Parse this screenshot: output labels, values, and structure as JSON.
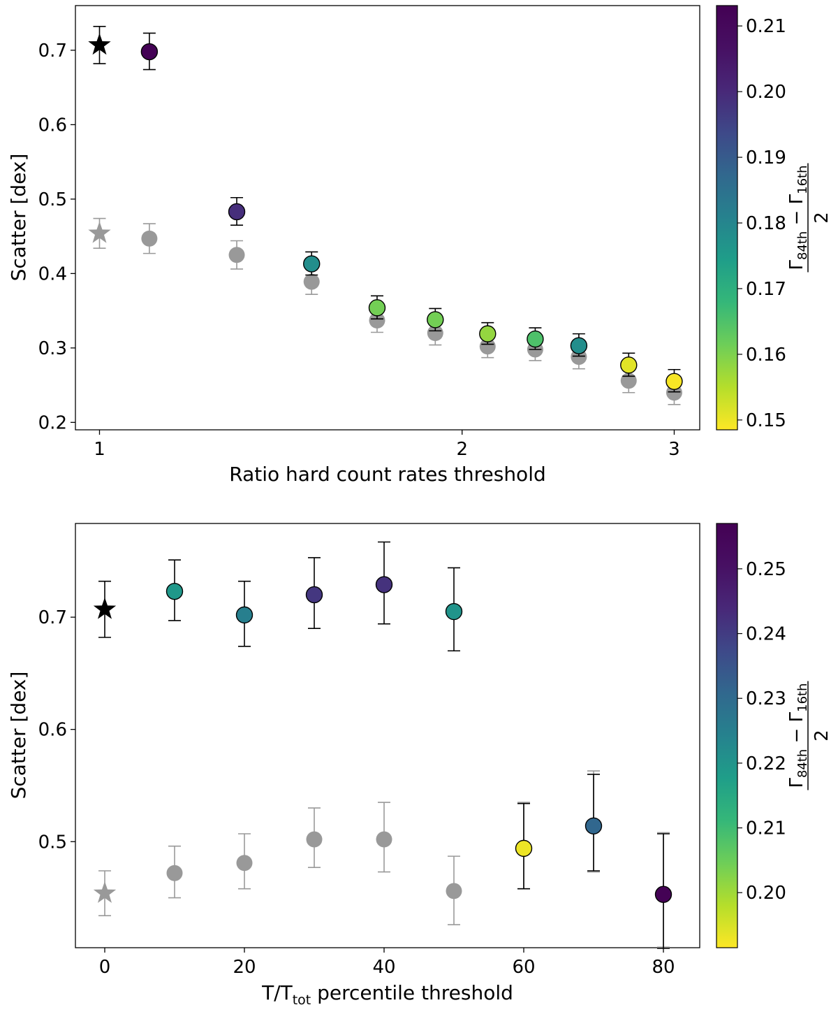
{
  "chart_data": [
    {
      "type": "scatter",
      "xscale": "log",
      "xlabel": "Ratio hard count rates threshold",
      "ylabel": "Scatter [dex]",
      "xlim": [
        0.955,
        3.15
      ],
      "ylim": [
        0.19,
        0.76
      ],
      "xticks": [
        1,
        2,
        3
      ],
      "xtick_labels": [
        "1",
        "2",
        "3"
      ],
      "yticks": [
        0.2,
        0.3,
        0.4,
        0.5,
        0.6,
        0.7
      ],
      "ytick_labels": [
        "0.2",
        "0.3",
        "0.4",
        "0.5",
        "0.6",
        "0.7"
      ],
      "colorbar": {
        "label": "(Γ84th − Γ16th)/2",
        "min": 0.1485,
        "max": 0.2131,
        "ticks": [
          0.15,
          0.16,
          0.17,
          0.18,
          0.19,
          0.2,
          0.21
        ],
        "tick_labels": [
          "0.15",
          "0.16",
          "0.17",
          "0.18",
          "0.19",
          "0.20",
          "0.21"
        ]
      },
      "reference_star": {
        "x": 1.0,
        "y": 0.707,
        "err_lo": 0.025,
        "err_hi": 0.025,
        "gray_y": 0.454,
        "gray_err_lo": 0.02,
        "gray_err_hi": 0.02
      },
      "series": [
        {
          "name": "colored",
          "points": [
            {
              "x": 1.1,
              "y": 0.698,
              "err_lo": 0.024,
              "err_hi": 0.025,
              "c": 0.2125
            },
            {
              "x": 1.3,
              "y": 0.483,
              "err_lo": 0.018,
              "err_hi": 0.019,
              "c": 0.199
            },
            {
              "x": 1.5,
              "y": 0.413,
              "err_lo": 0.015,
              "err_hi": 0.016,
              "c": 0.178
            },
            {
              "x": 1.7,
              "y": 0.354,
              "err_lo": 0.015,
              "err_hi": 0.016,
              "c": 0.161
            },
            {
              "x": 1.9,
              "y": 0.338,
              "err_lo": 0.015,
              "err_hi": 0.015,
              "c": 0.161
            },
            {
              "x": 2.1,
              "y": 0.319,
              "err_lo": 0.014,
              "err_hi": 0.015,
              "c": 0.158
            },
            {
              "x": 2.3,
              "y": 0.312,
              "err_lo": 0.014,
              "err_hi": 0.015,
              "c": 0.165
            },
            {
              "x": 2.5,
              "y": 0.303,
              "err_lo": 0.014,
              "err_hi": 0.016,
              "c": 0.178
            },
            {
              "x": 2.75,
              "y": 0.277,
              "err_lo": 0.015,
              "err_hi": 0.016,
              "c": 0.151
            },
            {
              "x": 3.0,
              "y": 0.255,
              "err_lo": 0.014,
              "err_hi": 0.016,
              "c": 0.149
            }
          ]
        },
        {
          "name": "gray",
          "color": "#999999",
          "points": [
            {
              "x": 1.1,
              "y": 0.447,
              "err_lo": 0.02,
              "err_hi": 0.02
            },
            {
              "x": 1.3,
              "y": 0.425,
              "err_lo": 0.019,
              "err_hi": 0.019
            },
            {
              "x": 1.5,
              "y": 0.389,
              "err_lo": 0.017,
              "err_hi": 0.017
            },
            {
              "x": 1.7,
              "y": 0.337,
              "err_lo": 0.016,
              "err_hi": 0.016
            },
            {
              "x": 1.9,
              "y": 0.32,
              "err_lo": 0.016,
              "err_hi": 0.016
            },
            {
              "x": 2.1,
              "y": 0.302,
              "err_lo": 0.015,
              "err_hi": 0.015
            },
            {
              "x": 2.3,
              "y": 0.298,
              "err_lo": 0.015,
              "err_hi": 0.015
            },
            {
              "x": 2.5,
              "y": 0.288,
              "err_lo": 0.016,
              "err_hi": 0.016
            },
            {
              "x": 2.75,
              "y": 0.256,
              "err_lo": 0.016,
              "err_hi": 0.016
            },
            {
              "x": 3.0,
              "y": 0.24,
              "err_lo": 0.016,
              "err_hi": 0.016
            }
          ]
        }
      ]
    },
    {
      "type": "scatter",
      "xscale": "linear",
      "xlabel": "T/Ttot percentile threshold",
      "xlabel_main": "T/T",
      "xlabel_sub": "tot",
      "xlabel_tail": " percentile threshold",
      "ylabel": "Scatter [dex]",
      "xlim": [
        -4.2,
        85.2
      ],
      "ylim": [
        0.4055,
        0.7835
      ],
      "xticks": [
        0,
        20,
        40,
        60,
        80
      ],
      "xtick_labels": [
        "0",
        "20",
        "40",
        "60",
        "80"
      ],
      "yticks": [
        0.5,
        0.6,
        0.7
      ],
      "ytick_labels": [
        "0.5",
        "0.6",
        "0.7"
      ],
      "colorbar": {
        "label": "(Γ84th − Γ16th)/2",
        "min": 0.1915,
        "max": 0.257,
        "ticks": [
          0.2,
          0.21,
          0.22,
          0.23,
          0.24,
          0.25
        ],
        "tick_labels": [
          "0.20",
          "0.21",
          "0.22",
          "0.23",
          "0.24",
          "0.25"
        ]
      },
      "reference_star": {
        "x": 0,
        "y": 0.707,
        "err_lo": 0.025,
        "err_hi": 0.025,
        "gray_y": 0.454,
        "gray_err_lo": 0.02,
        "gray_err_hi": 0.02
      },
      "series": [
        {
          "name": "colored",
          "points": [
            {
              "x": 10,
              "y": 0.723,
              "err_lo": 0.026,
              "err_hi": 0.028,
              "c": 0.219
            },
            {
              "x": 20,
              "y": 0.702,
              "err_lo": 0.028,
              "err_hi": 0.03,
              "c": 0.225
            },
            {
              "x": 30,
              "y": 0.72,
              "err_lo": 0.03,
              "err_hi": 0.033,
              "c": 0.241
            },
            {
              "x": 40,
              "y": 0.729,
              "err_lo": 0.035,
              "err_hi": 0.038,
              "c": 0.242
            },
            {
              "x": 50,
              "y": 0.705,
              "err_lo": 0.035,
              "err_hi": 0.039,
              "c": 0.22
            },
            {
              "x": 60,
              "y": 0.494,
              "err_lo": 0.036,
              "err_hi": 0.04,
              "c": 0.193
            },
            {
              "x": 70,
              "y": 0.514,
              "err_lo": 0.04,
              "err_hi": 0.046,
              "c": 0.231
            },
            {
              "x": 80,
              "y": 0.453,
              "err_lo": 0.048,
              "err_hi": 0.054,
              "c": 0.2565
            }
          ]
        },
        {
          "name": "gray",
          "color": "#999999",
          "points": [
            {
              "x": 10,
              "y": 0.472,
              "err_lo": 0.022,
              "err_hi": 0.024
            },
            {
              "x": 20,
              "y": 0.481,
              "err_lo": 0.023,
              "err_hi": 0.026
            },
            {
              "x": 30,
              "y": 0.502,
              "err_lo": 0.025,
              "err_hi": 0.028
            },
            {
              "x": 40,
              "y": 0.502,
              "err_lo": 0.029,
              "err_hi": 0.033
            },
            {
              "x": 50,
              "y": 0.456,
              "err_lo": 0.03,
              "err_hi": 0.031
            },
            {
              "x": 60,
              "y": 0.494,
              "err_lo": 0.036,
              "err_hi": 0.041
            },
            {
              "x": 70,
              "y": 0.514,
              "err_lo": 0.041,
              "err_hi": 0.049
            },
            {
              "x": 80,
              "y": 0.453,
              "err_lo": 0.047,
              "err_hi": 0.055
            }
          ]
        }
      ]
    }
  ]
}
